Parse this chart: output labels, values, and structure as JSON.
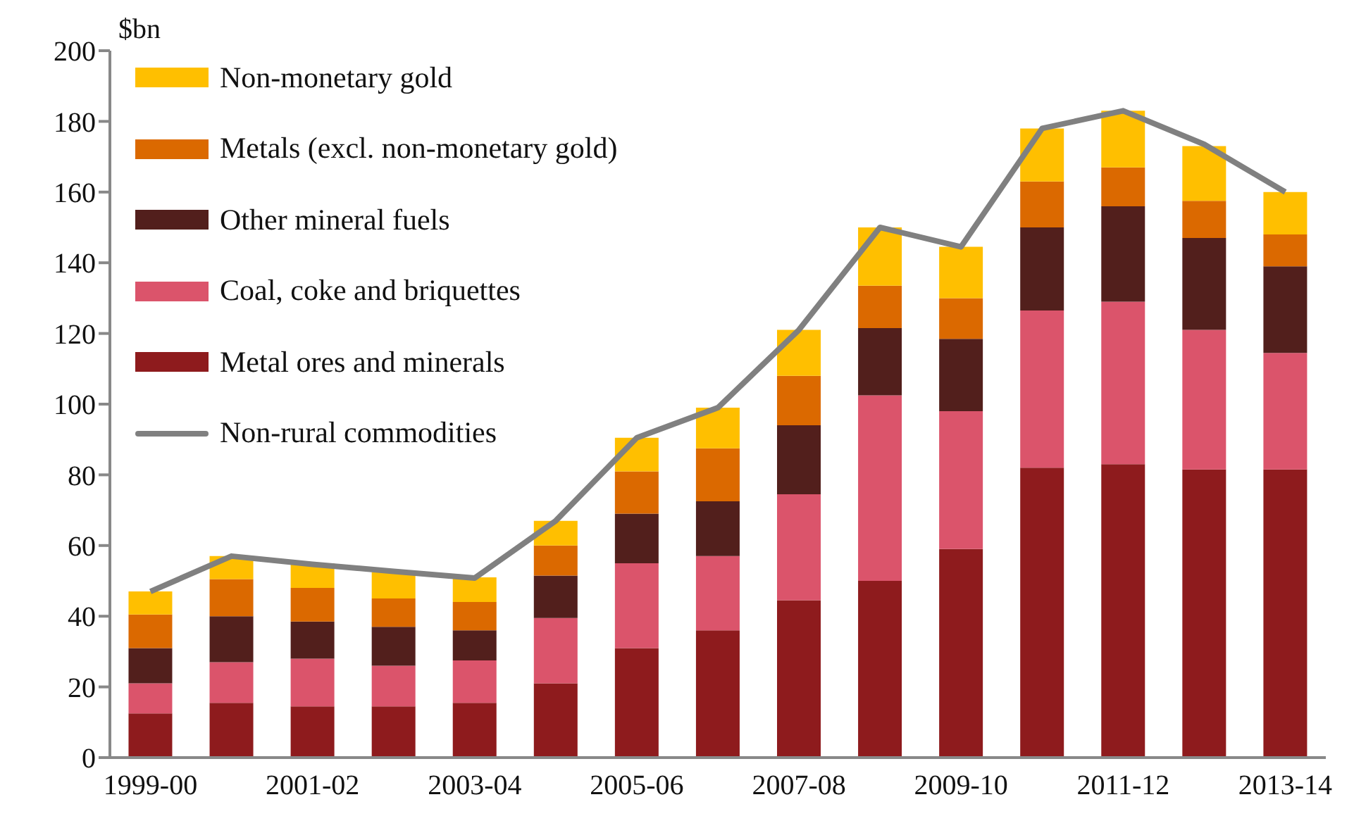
{
  "chart_data": {
    "type": "bar",
    "stacked": true,
    "ylabel": "$bn",
    "categories": [
      "1999-00",
      null,
      "2001-02",
      null,
      "2003-04",
      null,
      "2005-06",
      null,
      "2007-08",
      null,
      "2009-10",
      null,
      "2011-12",
      null,
      "2013-14"
    ],
    "series": [
      {
        "name": "Metal ores and minerals",
        "color": "#8e1b1d",
        "values": [
          12.5,
          15.5,
          14.5,
          14.5,
          15.5,
          21,
          31,
          36,
          44.5,
          50,
          59,
          82,
          83,
          81.5,
          81.5
        ]
      },
      {
        "name": "Coal, coke and briquettes",
        "color": "#db546b",
        "values": [
          8.5,
          11.5,
          13.5,
          11.5,
          12,
          18.5,
          24,
          21,
          30,
          52.5,
          39,
          44.5,
          46,
          39.5,
          33
        ]
      },
      {
        "name": "Other mineral fuels",
        "color": "#521f1c",
        "values": [
          10,
          13,
          10.5,
          11,
          8.5,
          12,
          14,
          15.5,
          19.5,
          19,
          20.5,
          23.5,
          27,
          26,
          24.5
        ]
      },
      {
        "name": "Metals (excl. non-monetary gold)",
        "color": "#db6900",
        "values": [
          9.5,
          10.5,
          9.5,
          8,
          8,
          8.5,
          12,
          15,
          14,
          12,
          11.5,
          13,
          11,
          10.5,
          9
        ]
      },
      {
        "name": "Non-monetary gold",
        "color": "#ffbf00",
        "values": [
          6.5,
          6.5,
          7,
          7.5,
          7,
          7,
          9.5,
          11.5,
          13,
          16.5,
          14.5,
          15,
          16,
          15.5,
          12
        ]
      },
      {
        "name": "Non-rural commodities",
        "type": "line",
        "color": "#808080",
        "values": [
          47,
          57,
          54.7,
          52.7,
          50.8,
          67,
          90.5,
          99,
          121,
          150,
          144.5,
          178,
          183,
          173.5,
          160
        ]
      }
    ],
    "ylim": [
      0,
      200
    ],
    "yticks": [
      0,
      20,
      40,
      60,
      80,
      100,
      120,
      140,
      160,
      180,
      200
    ],
    "legend": "top left"
  }
}
